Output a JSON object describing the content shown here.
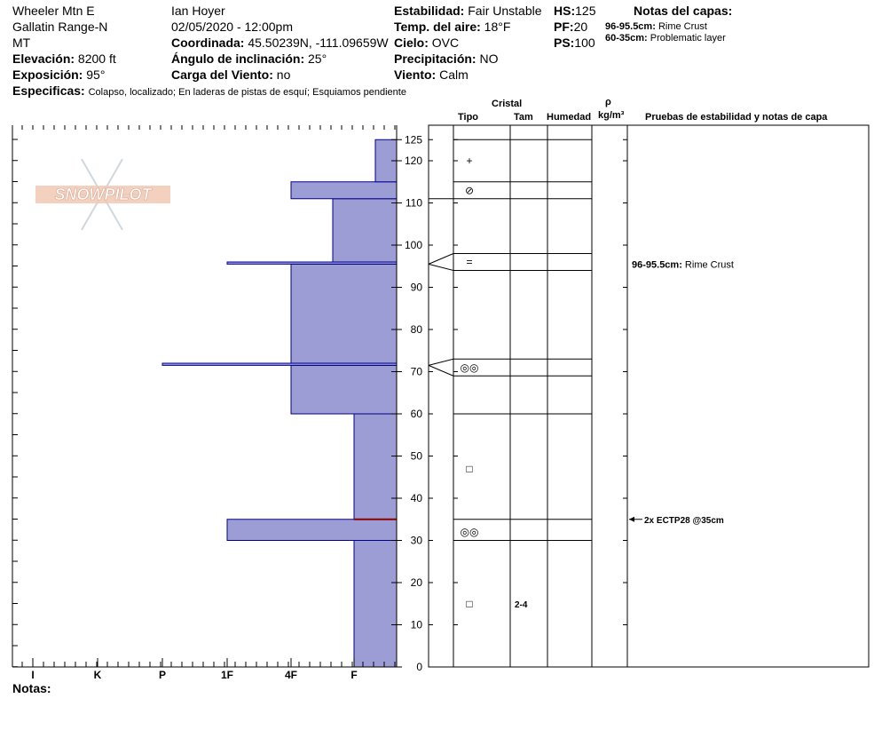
{
  "header": {
    "site": "Wheeler Mtn E",
    "range": "Gallatin Range-N",
    "state": "MT",
    "elevation_label": "Elevación:",
    "elevation": "8200 ft",
    "exposure_label": "Exposición:",
    "exposure": "95°",
    "observer": "Ian Hoyer",
    "datetime": "02/05/2020 - 12:00pm",
    "coord_label": "Coordinada:",
    "coord": "45.50239N, -111.09659W",
    "incline_label": "Ángulo de inclinación:",
    "incline": "25°",
    "wind_load_label": "Carga del Viento:",
    "wind_load": "no",
    "stability_label": "Estabilidad:",
    "stability": "Fair Unstable",
    "air_temp_label": "Temp. del aire:",
    "air_temp": "18°F",
    "sky_label": "Cielo:",
    "sky": "OVC",
    "precip_label": "Precipitación:",
    "precip": "NO",
    "wind_label": "Viento:",
    "wind": "Calm",
    "hs_label": "HS:",
    "hs": "125",
    "pf_label": "PF:",
    "pf": "20",
    "ps_label": "PS:",
    "ps": "100",
    "specifics_label": "Especificas:",
    "specifics": "Colapso, localizado; En laderas de pistas de esquí; Esquiamos pendiente"
  },
  "layer_notes": {
    "title": "Notas del capas:",
    "items": [
      {
        "range": "96-95.5cm:",
        "text": "Rime Crust"
      },
      {
        "range": "60-35cm:",
        "text": "Problematic layer"
      }
    ]
  },
  "logo_text": "SNOWPILOT",
  "columns": {
    "crystal": "Cristal",
    "type": "Tipo",
    "size": "Tam",
    "moisture": "Humedad",
    "rho": "ρ",
    "density_unit": "kg/m³",
    "tests": "Pruebas de estabilidad y notas de capa"
  },
  "footer": {
    "notes_label": "Notas:"
  },
  "annotations": [
    {
      "label": "96-95.5cm:",
      "text": "Rime Crust"
    }
  ],
  "tests": [
    {
      "text": "2x ECTP28 @35cm",
      "depth": 35
    }
  ],
  "colors": {
    "layer_fill": "#9d9dd6",
    "layer_stroke": "#00008b",
    "problem_line": "#8b0000"
  },
  "chart_data": {
    "type": "snow-profile",
    "height_unit": "cm",
    "ylim": [
      0,
      125
    ],
    "y_ticks": [
      0,
      10,
      20,
      30,
      40,
      50,
      60,
      70,
      80,
      90,
      100,
      110,
      120,
      125
    ],
    "hardness_scale": [
      "I",
      "K",
      "P",
      "1F",
      "4F",
      "F"
    ],
    "hardness_layers": [
      {
        "bottom": 0,
        "top": 30,
        "hardness": "F"
      },
      {
        "bottom": 30,
        "top": 35,
        "hardness": "1F"
      },
      {
        "bottom": 35,
        "top": 60,
        "hardness": "F"
      },
      {
        "bottom": 60,
        "top": 71.5,
        "hardness": "4F"
      },
      {
        "bottom": 71.5,
        "top": 72,
        "hardness": "P"
      },
      {
        "bottom": 72,
        "top": 95.5,
        "hardness": "4F"
      },
      {
        "bottom": 95.5,
        "top": 96,
        "hardness": "1F"
      },
      {
        "bottom": 96,
        "top": 111,
        "hardness": "4F-"
      },
      {
        "bottom": 111,
        "top": 115,
        "hardness": "4F"
      },
      {
        "bottom": 115,
        "top": 125,
        "hardness": "F-"
      }
    ],
    "problem_layer_height": 35,
    "layer_boundaries": [
      125,
      115,
      111,
      98,
      94,
      73,
      69,
      60,
      35,
      30
    ],
    "crystals": [
      {
        "height": 120,
        "symbol": "+",
        "size": ""
      },
      {
        "height": 113,
        "symbol": "⊘",
        "size": ""
      },
      {
        "height": 96,
        "symbol": "=",
        "size": ""
      },
      {
        "height": 71,
        "symbol": "◎◎",
        "size": ""
      },
      {
        "height": 47,
        "symbol": "□",
        "size": ""
      },
      {
        "height": 32,
        "symbol": "◎◎",
        "size": ""
      },
      {
        "height": 15,
        "symbol": "□",
        "size": "2-4"
      }
    ]
  }
}
